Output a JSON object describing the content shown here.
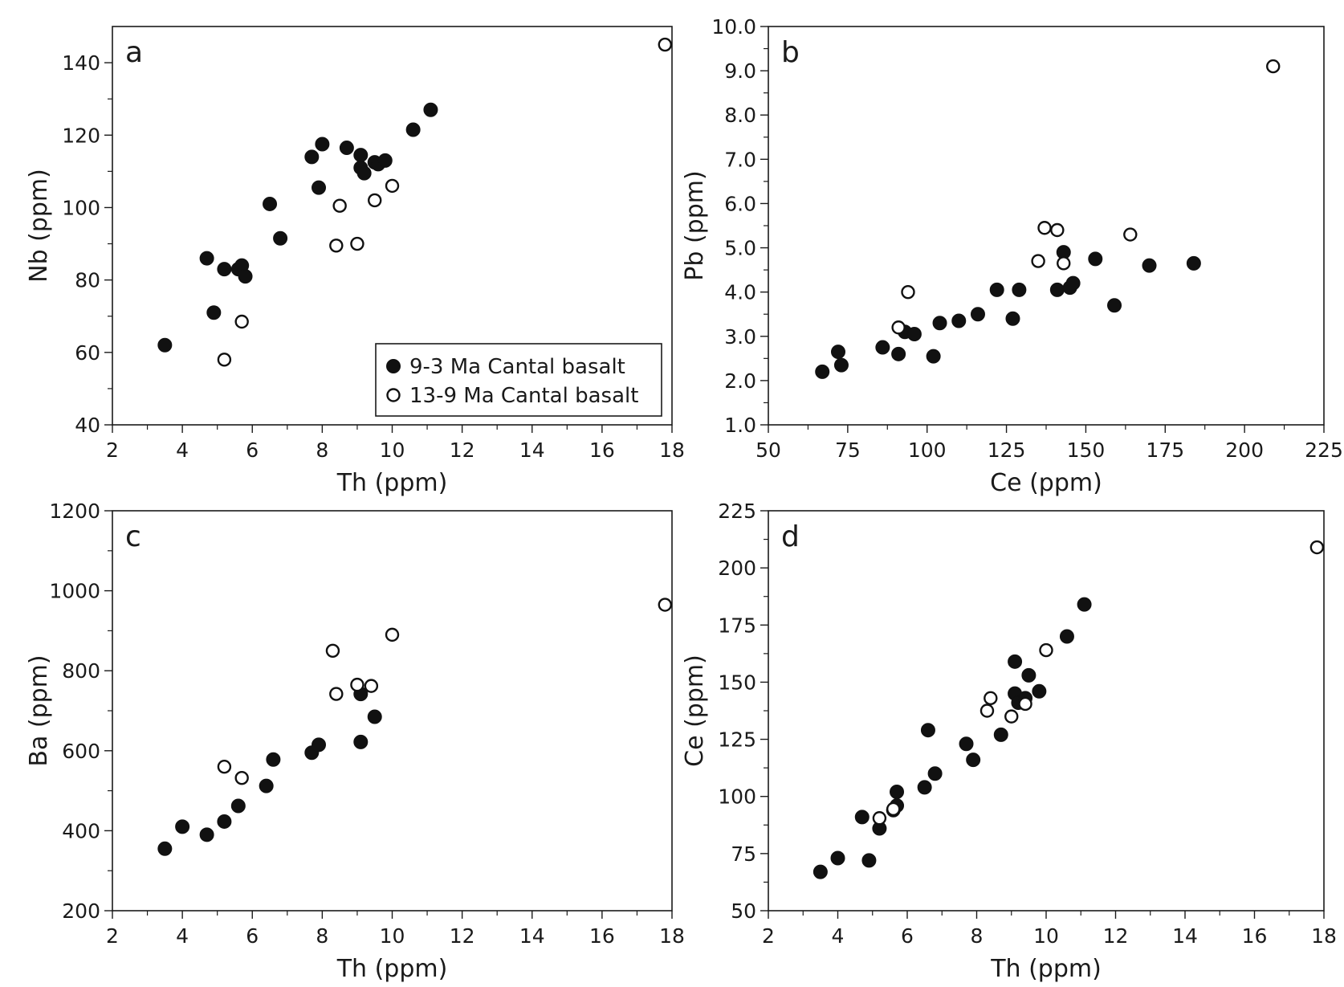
{
  "chart_data": [
    {
      "type": "scatter",
      "panel_label": "a",
      "xlabel": "Th (ppm)",
      "ylabel": "Nb (ppm)",
      "xlim": [
        2,
        18
      ],
      "ylim": [
        40,
        150
      ],
      "xticks": [
        2,
        4,
        6,
        8,
        10,
        12,
        14,
        16,
        18
      ],
      "yticks": [
        40,
        60,
        80,
        100,
        120,
        140
      ],
      "legend": {
        "position": "bottom-right",
        "entries": [
          {
            "label": "9-3 Ma Cantal basalt",
            "marker": "filled-circle"
          },
          {
            "label": "13-9 Ma Cantal basalt",
            "marker": "open-circle"
          }
        ]
      },
      "series": [
        {
          "name": "9-3 Ma Cantal basalt",
          "marker": "filled-circle",
          "points": [
            [
              3.5,
              62
            ],
            [
              4.7,
              86
            ],
            [
              4.9,
              71
            ],
            [
              5.2,
              83
            ],
            [
              5.6,
              83
            ],
            [
              5.7,
              84
            ],
            [
              5.8,
              81
            ],
            [
              6.5,
              101
            ],
            [
              6.8,
              91.5
            ],
            [
              7.7,
              114
            ],
            [
              7.9,
              105.5
            ],
            [
              8.0,
              117.5
            ],
            [
              8.7,
              116.5
            ],
            [
              9.1,
              114.5
            ],
            [
              9.1,
              111
            ],
            [
              9.2,
              109.5
            ],
            [
              9.5,
              112.5
            ],
            [
              9.6,
              112
            ],
            [
              9.8,
              113
            ],
            [
              10.6,
              121.5
            ],
            [
              11.1,
              127
            ]
          ]
        },
        {
          "name": "13-9 Ma Cantal basalt",
          "marker": "open-circle",
          "points": [
            [
              5.2,
              58
            ],
            [
              5.7,
              68.5
            ],
            [
              8.4,
              89.5
            ],
            [
              8.5,
              100.5
            ],
            [
              9.0,
              90
            ],
            [
              9.5,
              102
            ],
            [
              10.0,
              106
            ],
            [
              17.8,
              145
            ]
          ]
        }
      ]
    },
    {
      "type": "scatter",
      "panel_label": "b",
      "xlabel": "Ce (ppm)",
      "ylabel": "Pb (ppm)",
      "xlim": [
        50,
        225
      ],
      "ylim": [
        1.0,
        10.0
      ],
      "xticks": [
        50,
        75,
        100,
        125,
        150,
        175,
        200,
        225
      ],
      "yticks": [
        1.0,
        2.0,
        3.0,
        4.0,
        5.0,
        6.0,
        7.0,
        8.0,
        9.0,
        10.0
      ],
      "ytick_labels": [
        "1.0",
        "2.0",
        "3.0",
        "4.0",
        "5.0",
        "6.0",
        "7.0",
        "8.0",
        "9.0",
        "10.0"
      ],
      "series": [
        {
          "name": "9-3 Ma Cantal basalt",
          "marker": "filled-circle",
          "points": [
            [
              67,
              2.2
            ],
            [
              72,
              2.65
            ],
            [
              73,
              2.35
            ],
            [
              86,
              2.75
            ],
            [
              91,
              2.6
            ],
            [
              93,
              3.1
            ],
            [
              96,
              3.05
            ],
            [
              102,
              2.55
            ],
            [
              104,
              3.3
            ],
            [
              110,
              3.35
            ],
            [
              116,
              3.5
            ],
            [
              122,
              4.05
            ],
            [
              127,
              3.4
            ],
            [
              129,
              4.05
            ],
            [
              141,
              4.05
            ],
            [
              143,
              4.9
            ],
            [
              145,
              4.1
            ],
            [
              146,
              4.2
            ],
            [
              153,
              4.75
            ],
            [
              159,
              3.7
            ],
            [
              170,
              4.6
            ],
            [
              184,
              4.65
            ]
          ]
        },
        {
          "name": "13-9 Ma Cantal basalt",
          "marker": "open-circle",
          "points": [
            [
              91,
              3.2
            ],
            [
              94,
              4.0
            ],
            [
              135,
              4.7
            ],
            [
              137,
              5.45
            ],
            [
              141,
              5.4
            ],
            [
              143,
              4.65
            ],
            [
              164,
              5.3
            ],
            [
              209,
              9.1
            ]
          ]
        }
      ]
    },
    {
      "type": "scatter",
      "panel_label": "c",
      "xlabel": "Th (ppm)",
      "ylabel": "Ba (ppm)",
      "xlim": [
        2,
        18
      ],
      "ylim": [
        200,
        1200
      ],
      "xticks": [
        2,
        4,
        6,
        8,
        10,
        12,
        14,
        16,
        18
      ],
      "yticks": [
        200,
        400,
        600,
        800,
        1000,
        1200
      ],
      "series": [
        {
          "name": "9-3 Ma Cantal basalt",
          "marker": "filled-circle",
          "points": [
            [
              3.5,
              355
            ],
            [
              4.0,
              410
            ],
            [
              4.7,
              390
            ],
            [
              5.2,
              423
            ],
            [
              5.6,
              462
            ],
            [
              6.4,
              512
            ],
            [
              6.6,
              578
            ],
            [
              7.7,
              595
            ],
            [
              7.9,
              615
            ],
            [
              9.1,
              622
            ],
            [
              9.1,
              742
            ],
            [
              9.5,
              685
            ]
          ]
        },
        {
          "name": "13-9 Ma Cantal basalt",
          "marker": "open-circle",
          "points": [
            [
              5.2,
              560
            ],
            [
              5.7,
              532
            ],
            [
              8.3,
              850
            ],
            [
              8.4,
              742
            ],
            [
              9.0,
              765
            ],
            [
              9.4,
              762
            ],
            [
              10.0,
              890
            ],
            [
              17.8,
              965
            ]
          ]
        }
      ]
    },
    {
      "type": "scatter",
      "panel_label": "d",
      "xlabel": "Th (ppm)",
      "ylabel": "Ce (ppm)",
      "xlim": [
        2,
        18
      ],
      "ylim": [
        50,
        225
      ],
      "xticks": [
        2,
        4,
        6,
        8,
        10,
        12,
        14,
        16,
        18
      ],
      "yticks": [
        50,
        75,
        100,
        125,
        150,
        175,
        200,
        225
      ],
      "series": [
        {
          "name": "9-3 Ma Cantal basalt",
          "marker": "filled-circle",
          "points": [
            [
              3.5,
              67
            ],
            [
              4.0,
              73
            ],
            [
              4.7,
              91
            ],
            [
              4.9,
              72
            ],
            [
              5.2,
              86
            ],
            [
              5.6,
              94
            ],
            [
              5.7,
              102
            ],
            [
              5.7,
              96
            ],
            [
              6.5,
              104
            ],
            [
              6.6,
              129
            ],
            [
              6.8,
              110
            ],
            [
              7.7,
              123
            ],
            [
              7.9,
              116
            ],
            [
              8.7,
              127
            ],
            [
              9.1,
              159
            ],
            [
              9.1,
              145
            ],
            [
              9.2,
              141
            ],
            [
              9.4,
              143
            ],
            [
              9.5,
              153
            ],
            [
              9.8,
              146
            ],
            [
              10.6,
              170
            ],
            [
              11.1,
              184
            ]
          ]
        },
        {
          "name": "13-9 Ma Cantal basalt",
          "marker": "open-circle",
          "points": [
            [
              5.2,
              90.5
            ],
            [
              5.6,
              94.5
            ],
            [
              8.3,
              137.5
            ],
            [
              8.4,
              143
            ],
            [
              9.0,
              135
            ],
            [
              9.4,
              140.5
            ],
            [
              10.0,
              164
            ],
            [
              17.8,
              209
            ]
          ]
        }
      ]
    }
  ]
}
